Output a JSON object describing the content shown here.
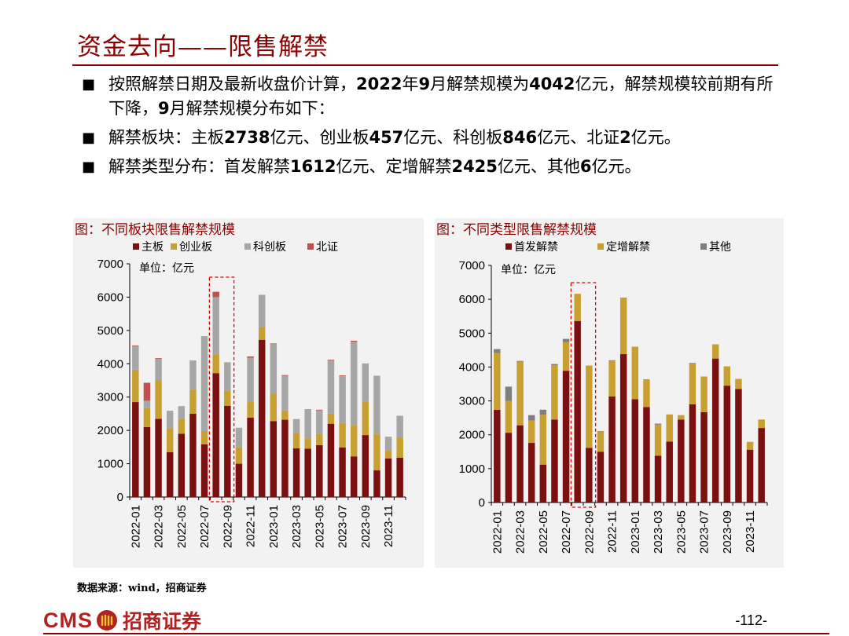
{
  "page": {
    "title": "资金去向——限售解禁",
    "bullets": [
      {
        "segments": [
          {
            "t": "按照解禁日期及最新收盘价计算，",
            "b": false
          },
          {
            "t": "2022",
            "b": true
          },
          {
            "t": "年",
            "b": false
          },
          {
            "t": "9",
            "b": true
          },
          {
            "t": "月解禁规模为",
            "b": false
          },
          {
            "t": "4042",
            "b": true
          },
          {
            "t": "亿元，解禁规模较前期有所下降，",
            "b": false
          },
          {
            "t": "9",
            "b": true
          },
          {
            "t": "月解禁规模分布如下：",
            "b": false
          }
        ]
      },
      {
        "segments": [
          {
            "t": "解禁板块：主板",
            "b": false
          },
          {
            "t": "2738",
            "b": true
          },
          {
            "t": "亿元、创业板",
            "b": false
          },
          {
            "t": "457",
            "b": true
          },
          {
            "t": "亿元、科创板",
            "b": false
          },
          {
            "t": "846",
            "b": true
          },
          {
            "t": "亿元、北证",
            "b": false
          },
          {
            "t": "2",
            "b": true
          },
          {
            "t": "亿元。",
            "b": false
          }
        ]
      },
      {
        "segments": [
          {
            "t": "解禁类型分布：首发解禁",
            "b": false
          },
          {
            "t": "1612",
            "b": true
          },
          {
            "t": "亿元、定增解禁",
            "b": false
          },
          {
            "t": "2425",
            "b": true
          },
          {
            "t": "亿元、其他",
            "b": false
          },
          {
            "t": "6",
            "b": true
          },
          {
            "t": "亿元。",
            "b": false
          }
        ]
      }
    ],
    "bullet_symbol": "■",
    "source": "数据来源：wind，招商证券",
    "logo_en": "CMS",
    "logo_cn": "招商证券",
    "page_number": "-112-"
  },
  "chart_data": [
    {
      "type": "bar",
      "stacked": true,
      "title": "图：不同板块限售解禁规模",
      "unit_label": "单位：亿元",
      "ylim": [
        0,
        7000
      ],
      "yticks": [
        0,
        1000,
        2000,
        3000,
        4000,
        5000,
        6000,
        7000
      ],
      "xtick_labels": [
        "2022-01",
        "2022-03",
        "2022-05",
        "2022-07",
        "2022-09",
        "2022-11",
        "2023-01",
        "2023-03",
        "2023-05",
        "2023-07",
        "2023-09",
        "2023-11"
      ],
      "categories": [
        "2022-01",
        "2022-02",
        "2022-03",
        "2022-04",
        "2022-05",
        "2022-06",
        "2022-07",
        "2022-08",
        "2022-09",
        "2022-10",
        "2022-11",
        "2022-12",
        "2023-01",
        "2023-02",
        "2023-03",
        "2023-04",
        "2023-05",
        "2023-06",
        "2023-07",
        "2023-08",
        "2023-09",
        "2023-10",
        "2023-11",
        "2023-12"
      ],
      "highlight_categories": [
        "2022-08",
        "2022-09"
      ],
      "legend_position": "top",
      "grid": false,
      "series": [
        {
          "name": "主板",
          "color": "#7B1010",
          "values": [
            2850,
            2100,
            2350,
            1350,
            1900,
            2500,
            1580,
            3720,
            2740,
            1000,
            2380,
            4720,
            2280,
            2320,
            1460,
            1450,
            1560,
            2200,
            1490,
            1220,
            1860,
            800,
            1160,
            1180
          ]
        },
        {
          "name": "创业板",
          "color": "#C8A032",
          "values": [
            970,
            580,
            1150,
            700,
            450,
            720,
            400,
            560,
            457,
            500,
            470,
            380,
            820,
            280,
            460,
            310,
            340,
            300,
            730,
            930,
            1000,
            1100,
            240,
            600
          ]
        },
        {
          "name": "科创板",
          "color": "#A6A6A6",
          "values": [
            710,
            210,
            650,
            540,
            380,
            880,
            2850,
            1720,
            846,
            580,
            1330,
            970,
            1490,
            1040,
            420,
            880,
            700,
            1600,
            1410,
            2510,
            1150,
            1740,
            410,
            660
          ]
        },
        {
          "name": "北证",
          "color": "#C0504D",
          "values": [
            20,
            540,
            20,
            0,
            0,
            0,
            0,
            160,
            2,
            0,
            40,
            0,
            20,
            20,
            0,
            0,
            20,
            20,
            20,
            30,
            0,
            0,
            0,
            0
          ]
        }
      ]
    },
    {
      "type": "bar",
      "stacked": true,
      "title": "图：不同类型限售解禁规模",
      "unit_label": "单位：亿元",
      "ylim": [
        0,
        7000
      ],
      "yticks": [
        0,
        1000,
        2000,
        3000,
        4000,
        5000,
        6000,
        7000
      ],
      "xtick_labels": [
        "2022-01",
        "2022-03",
        "2022-05",
        "2022-07",
        "2022-09",
        "2022-11",
        "2023-01",
        "2023-03",
        "2023-05",
        "2023-07",
        "2023-09",
        "2023-11"
      ],
      "categories": [
        "2022-01",
        "2022-02",
        "2022-03",
        "2022-04",
        "2022-05",
        "2022-06",
        "2022-07",
        "2022-08",
        "2022-09",
        "2022-10",
        "2022-11",
        "2022-12",
        "2023-01",
        "2023-02",
        "2023-03",
        "2023-04",
        "2023-05",
        "2023-06",
        "2023-07",
        "2023-08",
        "2023-09",
        "2023-10",
        "2023-11",
        "2023-12"
      ],
      "highlight_categories": [
        "2022-08",
        "2022-09"
      ],
      "legend_position": "top",
      "grid": false,
      "series": [
        {
          "name": "首发解禁",
          "color": "#7B1010",
          "values": [
            2740,
            2060,
            2280,
            1760,
            1120,
            2450,
            3890,
            5360,
            1612,
            1500,
            3130,
            4380,
            3050,
            2820,
            1380,
            1800,
            2450,
            2900,
            2670,
            4250,
            3450,
            3350,
            1560,
            2200
          ]
        },
        {
          "name": "定增解禁",
          "color": "#C8A032",
          "values": [
            1670,
            940,
            1880,
            660,
            1470,
            1600,
            850,
            800,
            2425,
            600,
            1050,
            1670,
            1550,
            820,
            920,
            800,
            130,
            1200,
            1050,
            420,
            570,
            300,
            230,
            250
          ]
        },
        {
          "name": "其他",
          "color": "#7F7F7F",
          "values": [
            120,
            420,
            20,
            160,
            150,
            40,
            90,
            0,
            6,
            10,
            20,
            0,
            0,
            0,
            30,
            0,
            0,
            20,
            0,
            0,
            0,
            0,
            0,
            0
          ]
        }
      ]
    }
  ]
}
